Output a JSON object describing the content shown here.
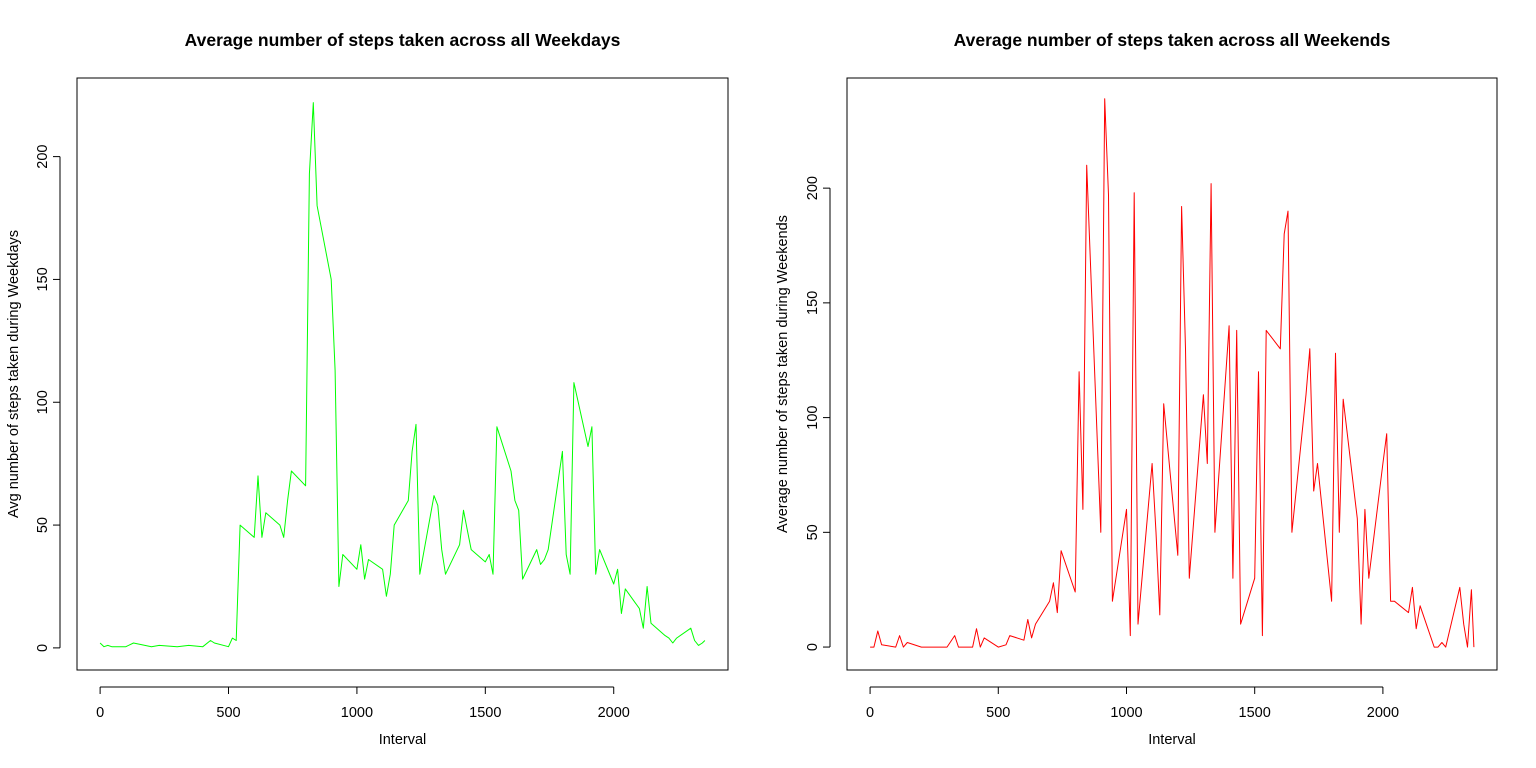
{
  "chart_data": [
    {
      "type": "line",
      "title": "Average number of steps taken across all Weekdays",
      "xlabel": "Interval",
      "ylabel": "Avg number of steps taken during Weekdays",
      "xlim": [
        -90,
        2445
      ],
      "ylim": [
        -9,
        232
      ],
      "xticks": [
        0,
        500,
        1000,
        1500,
        2000
      ],
      "yticks": [
        0,
        50,
        100,
        150,
        200
      ],
      "xtick_labels": [
        "0",
        "500",
        "1000",
        "1500",
        "2000"
      ],
      "ytick_labels": [
        "0",
        "50",
        "100",
        "150",
        "200"
      ],
      "grid": false,
      "series": [
        {
          "color": "#00ff00",
          "x": [
            0,
            15,
            30,
            45,
            100,
            130,
            200,
            230,
            300,
            345,
            400,
            430,
            445,
            500,
            515,
            530,
            545,
            600,
            615,
            630,
            645,
            700,
            715,
            730,
            745,
            800,
            815,
            830,
            845,
            900,
            915,
            930,
            945,
            1000,
            1015,
            1030,
            1045,
            1100,
            1115,
            1130,
            1145,
            1200,
            1215,
            1230,
            1245,
            1300,
            1315,
            1330,
            1345,
            1400,
            1415,
            1430,
            1445,
            1500,
            1515,
            1530,
            1545,
            1600,
            1615,
            1630,
            1645,
            1700,
            1715,
            1730,
            1745,
            1800,
            1815,
            1830,
            1845,
            1900,
            1915,
            1930,
            1945,
            2000,
            2015,
            2030,
            2045,
            2100,
            2115,
            2130,
            2145,
            2200,
            2215,
            2230,
            2245,
            2300,
            2315,
            2330,
            2345,
            2355
          ],
          "values": [
            2,
            0.5,
            1,
            0.5,
            0.5,
            2,
            0.5,
            1,
            0.5,
            1,
            0.5,
            3,
            2,
            0.5,
            4,
            3,
            50,
            45,
            70,
            45,
            55,
            50,
            45,
            60,
            72,
            66,
            193,
            222,
            180,
            150,
            113,
            25,
            38,
            32,
            42,
            28,
            36,
            32,
            21,
            30,
            50,
            60,
            80,
            91,
            30,
            62,
            58,
            40,
            30,
            42,
            56,
            48,
            40,
            35,
            38,
            30,
            90,
            72,
            60,
            56,
            28,
            40,
            34,
            36,
            40,
            80,
            38,
            30,
            108,
            82,
            90,
            30,
            40,
            26,
            32,
            14,
            24,
            16,
            8,
            25,
            10,
            5,
            4,
            2,
            4,
            8,
            3,
            1,
            2,
            3
          ]
        }
      ]
    },
    {
      "type": "line",
      "title": "Average number of steps taken across all Weekends",
      "xlabel": "Interval",
      "ylabel": "Average number of steps taken during Weekends",
      "xlim": [
        -90,
        2445
      ],
      "ylim": [
        -10,
        248
      ],
      "xticks": [
        0,
        500,
        1000,
        1500,
        2000
      ],
      "yticks": [
        0,
        50,
        100,
        150,
        200
      ],
      "xtick_labels": [
        "0",
        "500",
        "1000",
        "1500",
        "2000"
      ],
      "ytick_labels": [
        "0",
        "50",
        "100",
        "150",
        "200"
      ],
      "grid": false,
      "series": [
        {
          "color": "#ff0000",
          "x": [
            0,
            15,
            30,
            45,
            100,
            115,
            130,
            145,
            200,
            230,
            300,
            330,
            345,
            400,
            415,
            430,
            445,
            500,
            530,
            545,
            600,
            615,
            630,
            645,
            700,
            715,
            730,
            745,
            800,
            815,
            830,
            845,
            900,
            915,
            930,
            945,
            1000,
            1015,
            1030,
            1045,
            1100,
            1115,
            1130,
            1145,
            1200,
            1215,
            1230,
            1245,
            1300,
            1315,
            1330,
            1345,
            1400,
            1415,
            1430,
            1445,
            1500,
            1515,
            1530,
            1545,
            1600,
            1615,
            1630,
            1645,
            1700,
            1715,
            1730,
            1745,
            1800,
            1815,
            1830,
            1845,
            1900,
            1915,
            1930,
            1945,
            2000,
            2015,
            2030,
            2045,
            2100,
            2115,
            2130,
            2145,
            2200,
            2215,
            2230,
            2245,
            2300,
            2315,
            2330,
            2345,
            2355
          ],
          "values": [
            0,
            0,
            7,
            1,
            0,
            5,
            0,
            2,
            0,
            0,
            0,
            5,
            0,
            0,
            8,
            0,
            4,
            0,
            1,
            5,
            3,
            12,
            4,
            10,
            20,
            28,
            15,
            42,
            24,
            120,
            60,
            210,
            50,
            239,
            197,
            20,
            60,
            5,
            198,
            10,
            80,
            50,
            14,
            106,
            40,
            192,
            130,
            30,
            110,
            80,
            202,
            50,
            140,
            30,
            138,
            10,
            30,
            120,
            5,
            138,
            130,
            180,
            190,
            50,
            110,
            130,
            68,
            80,
            20,
            128,
            50,
            108,
            56,
            10,
            60,
            30,
            80,
            93,
            20,
            20,
            15,
            26,
            8,
            18,
            0,
            0,
            2,
            0,
            26,
            10,
            0,
            25,
            0
          ]
        }
      ]
    }
  ]
}
